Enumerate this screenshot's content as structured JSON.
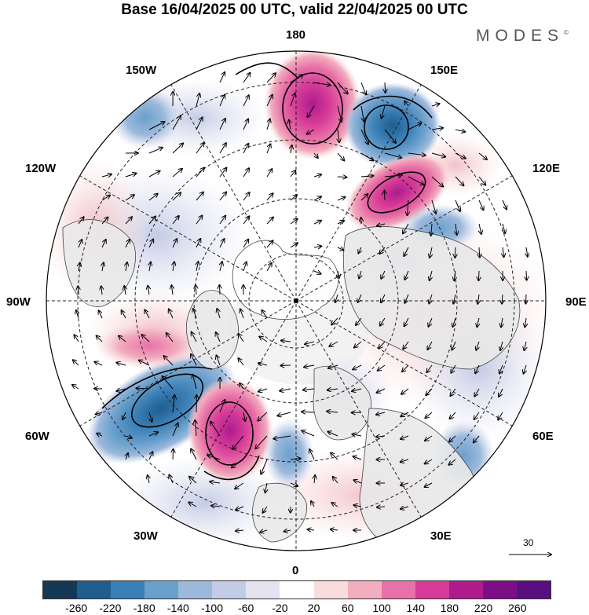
{
  "title": "Base 16/04/2025 00 UTC, valid 22/04/2025 00 UTC",
  "brand": "MODES",
  "brand_mark": "©",
  "longitude_labels": {
    "top": "180",
    "top_left": "150W",
    "top_right": "150E",
    "upper_left": "120W",
    "upper_right": "120E",
    "left": "90W",
    "right": "90E",
    "lower_left": "60W",
    "lower_right": "60E",
    "bottom_left": "30W",
    "bottom_right": "30E",
    "bottom": "0"
  },
  "reference_vector": {
    "label": "30"
  },
  "colorbar": {
    "ticks": [
      "-260",
      "-220",
      "-180",
      "-140",
      "-100",
      "-60",
      "-20",
      "20",
      "60",
      "100",
      "140",
      "180",
      "220",
      "260"
    ],
    "colors": [
      "#153955",
      "#1f5e8f",
      "#3a7fb6",
      "#6aa0cc",
      "#9cb9dc",
      "#c3cce6",
      "#e3e4f0",
      "#ffffff",
      "#f9dcdc",
      "#f2adbe",
      "#e871a8",
      "#d63b97",
      "#ad1b8c",
      "#7c0f86",
      "#581080"
    ]
  },
  "anomaly_centers": [
    {
      "name": "positive-anomaly-north-pacific",
      "sign": "positive",
      "level": 180
    },
    {
      "name": "negative-anomaly-kamchatka",
      "sign": "negative",
      "level": -220
    },
    {
      "name": "positive-anomaly-east-siberia",
      "sign": "positive",
      "level": 180
    },
    {
      "name": "negative-anomaly-north-atlantic",
      "sign": "negative",
      "level": -220
    },
    {
      "name": "positive-anomaly-greenland-south",
      "sign": "positive",
      "level": 220
    },
    {
      "name": "negative-anomaly-europe",
      "sign": "negative",
      "level": -140
    },
    {
      "name": "negative-anomaly-aleutian",
      "sign": "negative",
      "level": -100
    }
  ]
}
